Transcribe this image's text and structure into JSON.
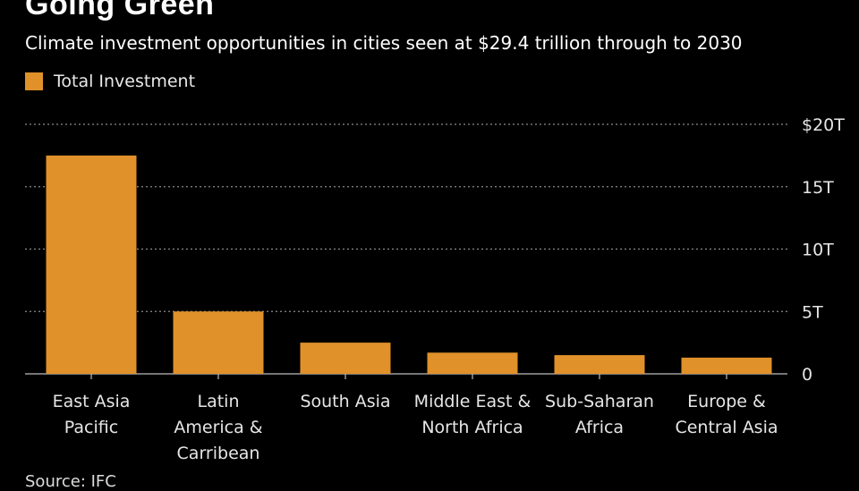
{
  "title": "Going Green",
  "subtitle": "Climate investment opportunities in cities seen at $29.4 trillion through to 2030",
  "source": "Source: IFC",
  "colors": {
    "bar": "#E0912A",
    "background": "#000000",
    "grid": "#8a8a8a",
    "text": "#e6e6e6"
  },
  "chart_data": {
    "type": "bar",
    "categories": [
      [
        "East Asia",
        "Pacific"
      ],
      [
        "Latin",
        "America &",
        "Carribean"
      ],
      [
        "South Asia"
      ],
      [
        "Middle East &",
        "North Africa"
      ],
      [
        "Sub-Saharan",
        "Africa"
      ],
      [
        "Europe &",
        "Central Asia"
      ]
    ],
    "series": [
      {
        "name": "Total Investment",
        "values": [
          17.5,
          5.0,
          2.5,
          1.7,
          1.5,
          1.3
        ]
      }
    ],
    "ylim": [
      0,
      20
    ],
    "yticks": [
      0,
      5,
      10,
      15,
      20
    ],
    "ytick_labels": [
      "0",
      "5T",
      "10T",
      "15T",
      "$20T"
    ],
    "y_axis_side": "right",
    "grid": true,
    "legend_position": "top-left"
  }
}
